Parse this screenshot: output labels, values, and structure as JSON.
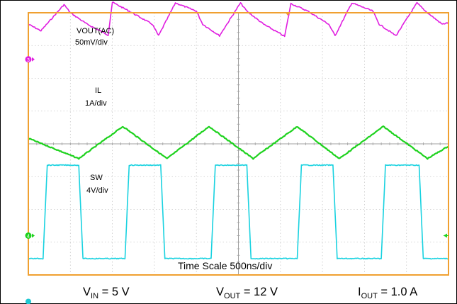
{
  "chart_data": {
    "type": "line",
    "title": "",
    "xlabel": "Time Scale 500ns/div",
    "grid": true,
    "x_divisions": 10,
    "y_divisions": 8,
    "series": [
      {
        "name": "VOUT(AC)",
        "scale_label": "50mV/div",
        "color": "#e01ee0",
        "marker": "3",
        "x": [
          0,
          0.3,
          0.85,
          1.0,
          1.4,
          1.9,
          2.0,
          2.4,
          2.95,
          3.1,
          3.5,
          4.0,
          4.15,
          4.55,
          5.05,
          5.2,
          5.6,
          6.1,
          6.25,
          6.65,
          7.15,
          7.3,
          7.7,
          8.2,
          8.35,
          8.75,
          9.25,
          9.45,
          9.85,
          10.0
        ],
        "y": [
          1.05,
          0.85,
          1.65,
          1.4,
          1.05,
          0.72,
          1.72,
          1.45,
          1.05,
          0.7,
          1.7,
          1.45,
          1.05,
          0.7,
          1.7,
          1.45,
          1.05,
          0.68,
          1.68,
          1.45,
          1.05,
          0.7,
          1.7,
          1.45,
          1.05,
          0.7,
          1.7,
          1.45,
          1.05,
          1.1
        ]
      },
      {
        "name": "IL",
        "scale_label": "1A/div",
        "color": "#1ed21e",
        "x": [
          0,
          1.2,
          2.25,
          3.3,
          4.3,
          5.35,
          6.4,
          7.4,
          8.45,
          9.5,
          10.0
        ],
        "y": [
          0.12,
          -0.5,
          0.48,
          -0.5,
          0.48,
          -0.5,
          0.48,
          -0.5,
          0.48,
          -0.5,
          -0.12
        ]
      },
      {
        "name": "SW",
        "scale_label": "4V/div",
        "color": "#19d2e0",
        "marker": "4",
        "x": [
          0,
          0.35,
          0.45,
          1.2,
          1.3,
          2.3,
          2.4,
          3.15,
          3.25,
          4.35,
          4.45,
          5.2,
          5.3,
          6.4,
          6.5,
          7.25,
          7.35,
          8.4,
          8.5,
          9.3,
          9.4,
          10.0
        ],
        "y": [
          -1.15,
          -1.15,
          1.7,
          1.7,
          -1.15,
          -1.15,
          1.7,
          1.7,
          -1.15,
          -1.15,
          1.7,
          1.7,
          -1.15,
          -1.15,
          1.7,
          1.7,
          -1.15,
          -1.15,
          1.7,
          1.7,
          -1.15,
          -1.15
        ]
      }
    ],
    "conditions": [
      {
        "main": "V",
        "sub": "IN",
        "rest": " = 5 V"
      },
      {
        "main": "V",
        "sub": "OUT",
        "rest": " = 12 V"
      },
      {
        "main": "I",
        "sub": "OUT",
        "rest": " = 1.0 A"
      }
    ],
    "colors": {
      "frame": "#f0a030",
      "grid": "#c8c8c8",
      "axis": "#a0a0a0",
      "trigger": "#f0a030",
      "ground_marker": "#1ec8d2"
    }
  }
}
